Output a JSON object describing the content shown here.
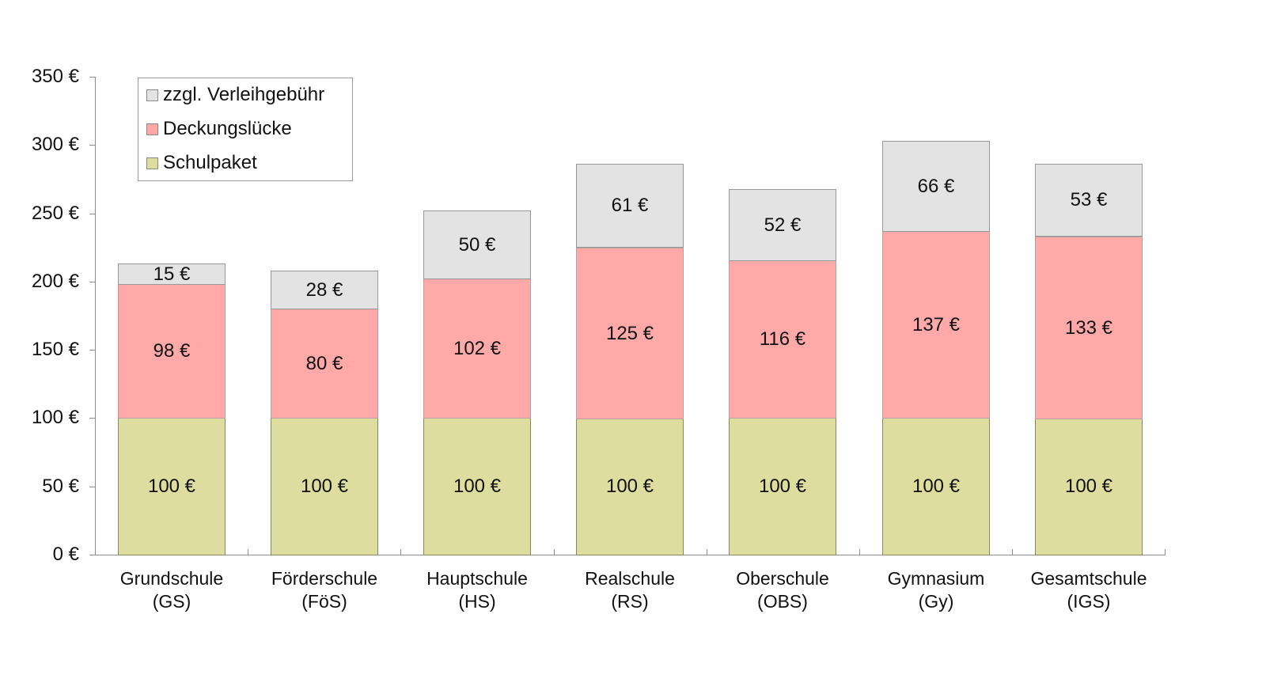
{
  "chart_data": {
    "type": "bar",
    "stacked": true,
    "title": "",
    "xlabel": "",
    "ylabel": "",
    "ylim": [
      0,
      350
    ],
    "yticks": [
      "0 €",
      "50 €",
      "100 €",
      "150 €",
      "200 €",
      "250 €",
      "300 €",
      "350 €"
    ],
    "grid": false,
    "legend_position": "top-left inside",
    "categories": [
      {
        "line1": "Grundschule",
        "line2": "(GS)"
      },
      {
        "line1": "Förderschule",
        "line2": "(FöS)"
      },
      {
        "line1": "Hauptschule",
        "line2": "(HS)"
      },
      {
        "line1": "Realschule",
        "line2": "(RS)"
      },
      {
        "line1": "Oberschule",
        "line2": "(OBS)"
      },
      {
        "line1": "Gymnasium",
        "line2": "(Gy)"
      },
      {
        "line1": "Gesamtschule",
        "line2": "(IGS)"
      }
    ],
    "series": [
      {
        "name": "Schulpaket",
        "color": "#dddd9f",
        "values": [
          100,
          100,
          100,
          100,
          100,
          100,
          100
        ],
        "labels": [
          "100 €",
          "100 €",
          "100 €",
          "100 €",
          "100 €",
          "100 €",
          "100 €"
        ]
      },
      {
        "name": "Deckungslücke",
        "color": "#ffa9a9",
        "values": [
          98,
          80,
          102,
          125,
          116,
          137,
          133
        ],
        "labels": [
          "98 €",
          "80 €",
          "102 €",
          "125 €",
          "116 €",
          "137 €",
          "133 €"
        ]
      },
      {
        "name": "zzgl. Verleihgebühr",
        "color": "#e3e3e3",
        "values": [
          15,
          28,
          50,
          61,
          52,
          66,
          53
        ],
        "labels": [
          "15 €",
          "28 €",
          "50 €",
          "61 €",
          "52 €",
          "66 €",
          "53 €"
        ]
      }
    ],
    "legend": [
      {
        "label": "zzgl. Verleihgebühr",
        "color": "#e3e3e3"
      },
      {
        "label": "Deckungslücke",
        "color": "#ffa9a9"
      },
      {
        "label": "Schulpaket",
        "color": "#dddd9f"
      }
    ]
  }
}
